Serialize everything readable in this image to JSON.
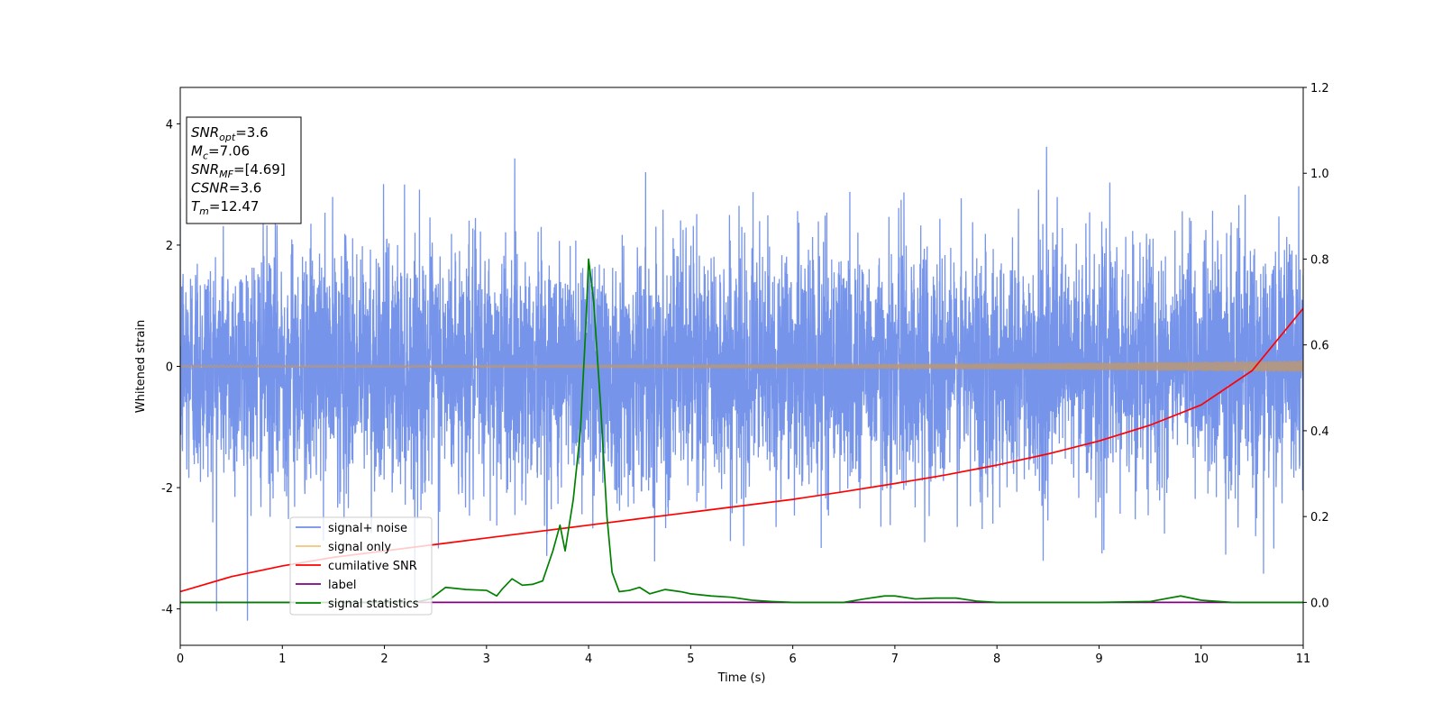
{
  "chart_data": {
    "type": "line",
    "title": "",
    "xlabel": "Time (s)",
    "ylabel": "Whitened strain",
    "y2label": "",
    "xlim": [
      0,
      11
    ],
    "ylim": [
      -4.6,
      4.6
    ],
    "y2lim": [
      -0.1,
      1.2
    ],
    "x_ticks": [
      0,
      1,
      2,
      3,
      4,
      5,
      6,
      7,
      8,
      9,
      10,
      11
    ],
    "y_ticks": [
      -4,
      -2,
      0,
      2,
      4
    ],
    "y2_ticks": [
      "0.0",
      "0.2",
      "0.4",
      "0.6",
      "0.8",
      "1.0",
      "1.2"
    ],
    "y2_tick_values": [
      0.0,
      0.2,
      0.4,
      0.6,
      0.8,
      1.0,
      1.2
    ],
    "grid": false,
    "legend_position": "lower-left",
    "info_box": {
      "lines": [
        {
          "name": "SNR",
          "sub": "opt",
          "value": "=3.6"
        },
        {
          "name": "M",
          "sub": "c",
          "value": "=7.06"
        },
        {
          "name": "SNR",
          "sub": "MF",
          "value": "=[4.69]"
        },
        {
          "name": "CSNR",
          "sub": "",
          "value": "=3.6"
        },
        {
          "name": "T",
          "sub": "m",
          "value": "=12.47"
        }
      ]
    },
    "series": [
      {
        "name": "signal+ noise",
        "axis": "left",
        "color": "#6f8ee8",
        "kind": "noise",
        "noise_sigma": 1.0,
        "noise_range": [
          -4.2,
          4.2
        ]
      },
      {
        "name": "signal only",
        "axis": "left",
        "color": "#f5c27a",
        "kind": "chirp",
        "amplitude_start": 0.02,
        "amplitude_end": 0.1
      },
      {
        "name": "cumilative SNR",
        "axis": "right",
        "color": "#ff0000",
        "x": [
          0,
          0.5,
          1,
          1.5,
          2,
          2.5,
          3,
          3.5,
          4,
          4.5,
          5,
          5.5,
          6,
          6.5,
          7,
          7.5,
          8,
          8.5,
          9,
          9.5,
          10,
          10.5,
          11
        ],
        "y": [
          0.025,
          0.06,
          0.085,
          0.105,
          0.12,
          0.135,
          0.15,
          0.165,
          0.18,
          0.195,
          0.21,
          0.225,
          0.24,
          0.258,
          0.277,
          0.297,
          0.32,
          0.346,
          0.376,
          0.413,
          0.46,
          0.54,
          0.685
        ]
      },
      {
        "name": "label",
        "axis": "right",
        "color": "#800080",
        "x": [
          0,
          11
        ],
        "y": [
          0.0,
          0.0
        ]
      },
      {
        "name": "signal statistics",
        "axis": "right",
        "color": "#008000",
        "x": [
          0,
          0.5,
          1,
          1.5,
          2,
          2.3,
          2.45,
          2.6,
          2.8,
          3.0,
          3.1,
          3.15,
          3.25,
          3.35,
          3.45,
          3.55,
          3.65,
          3.72,
          3.77,
          3.85,
          3.92,
          3.97,
          4.0,
          4.05,
          4.12,
          4.18,
          4.23,
          4.3,
          4.4,
          4.5,
          4.6,
          4.75,
          4.9,
          5.0,
          5.2,
          5.4,
          5.6,
          5.8,
          6.0,
          6.3,
          6.5,
          6.7,
          6.9,
          7.0,
          7.2,
          7.4,
          7.6,
          7.8,
          8.0,
          8.5,
          9.0,
          9.5,
          9.8,
          10.0,
          10.3,
          10.6,
          11.0
        ],
        "y": [
          0.0,
          0.0,
          0.0,
          0.0,
          0.0,
          0.0,
          0.008,
          0.035,
          0.03,
          0.028,
          0.015,
          0.03,
          0.055,
          0.04,
          0.042,
          0.05,
          0.12,
          0.18,
          0.12,
          0.24,
          0.4,
          0.63,
          0.8,
          0.7,
          0.45,
          0.2,
          0.07,
          0.025,
          0.028,
          0.035,
          0.02,
          0.03,
          0.025,
          0.02,
          0.015,
          0.012,
          0.005,
          0.002,
          0.0,
          0.0,
          0.0,
          0.008,
          0.015,
          0.015,
          0.008,
          0.01,
          0.01,
          0.003,
          0.0,
          0.0,
          0.0,
          0.002,
          0.015,
          0.005,
          0.0,
          0.0,
          0.0
        ]
      }
    ]
  }
}
